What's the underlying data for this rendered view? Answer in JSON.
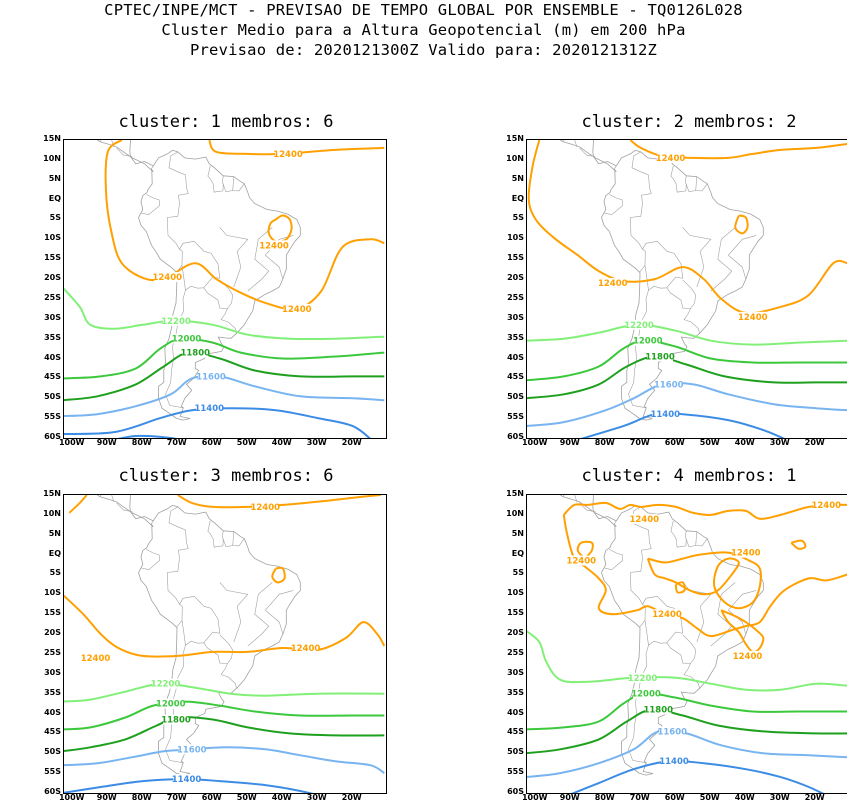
{
  "header": {
    "line1": "CPTEC/INPE/MCT - PREVISAO DE TEMPO GLOBAL POR ENSEMBLE - TQ0126L028",
    "line2": "Cluster Medio para a Altura Geopotencial (m) em 200 hPa",
    "line3": "Previsao de: 2020121300Z   Valido para: 2020121312Z"
  },
  "axes": {
    "lat_labels": [
      "15N",
      "10N",
      "5N",
      "EQ",
      "5S",
      "10S",
      "15S",
      "20S",
      "25S",
      "30S",
      "35S",
      "40S",
      "45S",
      "50S",
      "55S",
      "60S"
    ],
    "lon_labels": [
      "100W",
      "90W",
      "80W",
      "70W",
      "60W",
      "50W",
      "40W",
      "30W",
      "20W"
    ]
  },
  "colors": {
    "c12400": "#ffa000",
    "c12200": "#82f078",
    "c12000": "#3cc83c",
    "c11800": "#1ea01e",
    "c11600": "#78b4f0",
    "c11400": "#3c8ce6",
    "coast": "#a0a0a0"
  },
  "panels": [
    {
      "title": "cluster: 1  membros: 6",
      "labels": [
        {
          "text": "12400",
          "level": "c12400",
          "x": -38.5,
          "y": 11.5
        },
        {
          "text": "12400",
          "level": "c12400",
          "x": -42.5,
          "y": -11.5
        },
        {
          "text": "12400",
          "level": "c12400",
          "x": -73,
          "y": -19.5
        },
        {
          "text": "12400",
          "level": "c12400",
          "x": -36,
          "y": -27.5
        },
        {
          "text": "12200",
          "level": "c12200",
          "x": -70.5,
          "y": -30.5
        },
        {
          "text": "12000",
          "level": "c12000",
          "x": -67.5,
          "y": -35
        },
        {
          "text": "11800",
          "level": "c11800",
          "x": -65,
          "y": -38.5
        },
        {
          "text": "11600",
          "level": "c11600",
          "x": -60.5,
          "y": -44.5
        },
        {
          "text": "11400",
          "level": "c11400",
          "x": -61,
          "y": -52.5
        }
      ]
    },
    {
      "title": "cluster: 2  membros: 2",
      "labels": [
        {
          "text": "12400",
          "level": "c12400",
          "x": -61.5,
          "y": 10.5
        },
        {
          "text": "12400",
          "level": "c12400",
          "x": -78,
          "y": -21
        },
        {
          "text": "12400",
          "level": "c12400",
          "x": -38,
          "y": -29.5
        },
        {
          "text": "12200",
          "level": "c12200",
          "x": -70.5,
          "y": -31.5
        },
        {
          "text": "12000",
          "level": "c12000",
          "x": -68,
          "y": -35.5
        },
        {
          "text": "11800",
          "level": "c11800",
          "x": -64.5,
          "y": -39.5
        },
        {
          "text": "11600",
          "level": "c11600",
          "x": -62,
          "y": -46.5
        },
        {
          "text": "11400",
          "level": "c11400",
          "x": -63,
          "y": -54
        }
      ]
    },
    {
      "title": "cluster: 3  membros: 6",
      "labels": [
        {
          "text": "12400",
          "level": "c12400",
          "x": -45,
          "y": 12
        },
        {
          "text": "12400",
          "level": "c12400",
          "x": -93.5,
          "y": -26
        },
        {
          "text": "12400",
          "level": "c12400",
          "x": -33.5,
          "y": -23.5
        },
        {
          "text": "12200",
          "level": "c12200",
          "x": -73.5,
          "y": -32.5
        },
        {
          "text": "12000",
          "level": "c12000",
          "x": -72,
          "y": -37.5
        },
        {
          "text": "11800",
          "level": "c11800",
          "x": -70.5,
          "y": -41.5
        },
        {
          "text": "11600",
          "level": "c11600",
          "x": -66,
          "y": -49
        },
        {
          "text": "11400",
          "level": "c11400",
          "x": -67.5,
          "y": -56.5
        }
      ]
    },
    {
      "title": "cluster: 4  membros: 1",
      "labels": [
        {
          "text": "12400",
          "level": "c12400",
          "x": -17,
          "y": 12.5
        },
        {
          "text": "12400",
          "level": "c12400",
          "x": -69,
          "y": 9
        },
        {
          "text": "12400",
          "level": "c12400",
          "x": -40,
          "y": 0.5
        },
        {
          "text": "12400",
          "level": "c12400",
          "x": -87,
          "y": -1.5
        },
        {
          "text": "12400",
          "level": "c12400",
          "x": -62.5,
          "y": -15
        },
        {
          "text": "12400",
          "level": "c12400",
          "x": -39.5,
          "y": -25.5
        },
        {
          "text": "12200",
          "level": "c12200",
          "x": -69.5,
          "y": -31
        },
        {
          "text": "12000",
          "level": "c12000",
          "x": -68.5,
          "y": -35
        },
        {
          "text": "11800",
          "level": "c11800",
          "x": -65,
          "y": -39
        },
        {
          "text": "11600",
          "level": "c11600",
          "x": -61,
          "y": -44.5
        },
        {
          "text": "11400",
          "level": "c11400",
          "x": -60.5,
          "y": -52
        }
      ]
    }
  ]
}
